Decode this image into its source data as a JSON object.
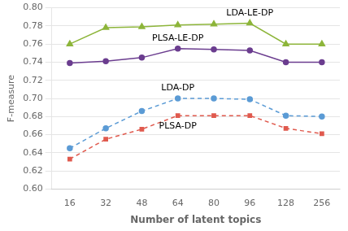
{
  "chart_data": {
    "type": "line",
    "xlabel": "Number of latent topics",
    "ylabel": "F-measure",
    "categories": [
      16,
      32,
      48,
      64,
      80,
      96,
      128,
      256
    ],
    "series": [
      {
        "name": "LDA-LE-DP",
        "color": "#8db53a",
        "marker": "triangle",
        "line_style": "solid",
        "values": [
          0.76,
          0.778,
          0.779,
          0.781,
          0.782,
          0.783,
          0.76,
          0.76
        ]
      },
      {
        "name": "PLSA-LE-DP",
        "color": "#6b3d8f",
        "marker": "circle",
        "line_style": "solid",
        "values": [
          0.739,
          0.741,
          0.745,
          0.755,
          0.754,
          0.753,
          0.74,
          0.74
        ]
      },
      {
        "name": "LDA-DP",
        "color": "#5b9bd5",
        "marker": "circle",
        "line_style": "dashed",
        "values": [
          0.645,
          0.667,
          0.686,
          0.7,
          0.7,
          0.699,
          0.681,
          0.68
        ]
      },
      {
        "name": "PLSA-DP",
        "color": "#e05a4e",
        "marker": "square",
        "line_style": "dashed",
        "values": [
          0.633,
          0.655,
          0.666,
          0.681,
          0.681,
          0.681,
          0.667,
          0.661
        ]
      }
    ],
    "ylim": [
      0.6,
      0.8
    ],
    "yticks": [
      {
        "value": 0.6,
        "label": "0.60"
      },
      {
        "value": 0.62,
        "label": "0.62"
      },
      {
        "value": 0.64,
        "label": "0.64"
      },
      {
        "value": 0.66,
        "label": "0.66"
      },
      {
        "value": 0.68,
        "label": "0.68"
      },
      {
        "value": 0.7,
        "label": "0.70"
      },
      {
        "value": 0.72,
        "label": "0.72"
      },
      {
        "value": 0.74,
        "label": "0.74"
      },
      {
        "value": 0.76,
        "label": "0.76"
      },
      {
        "value": 0.78,
        "label": "0.78"
      },
      {
        "value": 0.8,
        "label": "0.80"
      }
    ],
    "grid": true
  }
}
